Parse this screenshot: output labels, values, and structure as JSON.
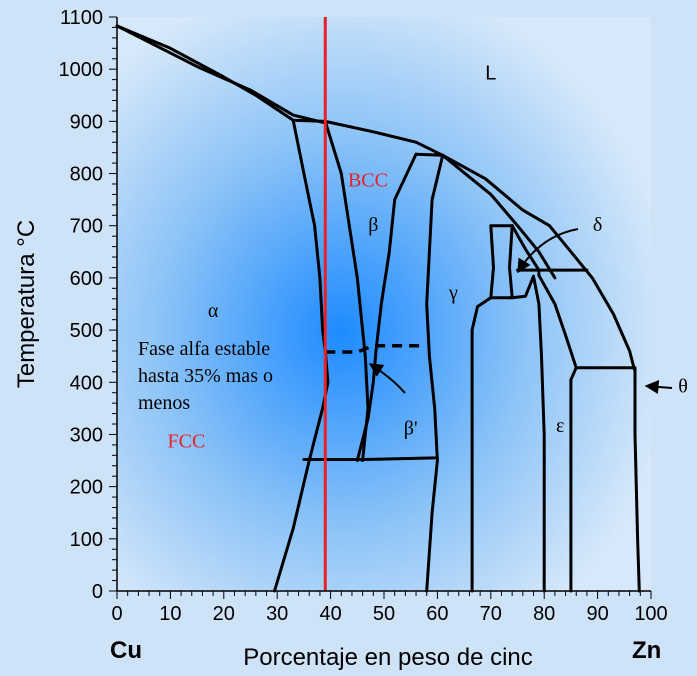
{
  "chart_data": {
    "type": "phase-diagram",
    "xlabel": "Porcentaje en peso de cinc",
    "ylabel": "Temperatura °C",
    "xlim": [
      0,
      100
    ],
    "ylim": [
      0,
      1100
    ],
    "x_ticks": [
      "0",
      "10",
      "20",
      "30",
      "40",
      "50",
      "60",
      "70",
      "80",
      "90",
      "100"
    ],
    "y_ticks": [
      "0",
      "100",
      "200",
      "300",
      "400",
      "500",
      "600",
      "700",
      "800",
      "900",
      "1000",
      "1100"
    ],
    "x_left_label": "Cu",
    "x_right_label": "Zn",
    "reference_line": {
      "x": 39,
      "color": "#e8202a"
    },
    "colors": {
      "background": "#cfe3f8",
      "plot_glow": "#1e8bff",
      "lines": "#000000",
      "labels_red": "#e8202a"
    },
    "phase_labels": [
      {
        "text": "L",
        "x": 70,
        "y": 980,
        "font": "sans"
      },
      {
        "text": "BCC",
        "x": 47,
        "y": 775,
        "font": "serif",
        "color": "#e8202a"
      },
      {
        "text": "β",
        "x": 48,
        "y": 690,
        "font": "serif"
      },
      {
        "text": "δ",
        "x": 90,
        "y": 690,
        "font": "serif"
      },
      {
        "text": "γ",
        "x": 63,
        "y": 560,
        "font": "serif"
      },
      {
        "text": "α",
        "x": 18,
        "y": 525,
        "font": "serif"
      },
      {
        "text": "β'",
        "x": 55,
        "y": 300,
        "font": "serif"
      },
      {
        "text": "ε",
        "x": 83,
        "y": 305,
        "font": "serif"
      },
      {
        "text": "FCC",
        "x": 13,
        "y": 275,
        "font": "serif",
        "color": "#e8202a"
      },
      {
        "text": "θ",
        "x": 106,
        "y": 380,
        "font": "serif"
      }
    ],
    "annotation": [
      "Fase alfa estable",
      "hasta 35% mas o",
      "menos"
    ],
    "boundaries": [
      [
        [
          0,
          1083
        ],
        [
          10,
          1040
        ],
        [
          20,
          985
        ],
        [
          26,
          950
        ],
        [
          33,
          902
        ],
        [
          39,
          900
        ],
        [
          48,
          880
        ],
        [
          56,
          860
        ],
        [
          61,
          835
        ]
      ],
      [
        [
          0,
          1083
        ],
        [
          15,
          1005
        ],
        [
          25,
          960
        ],
        [
          33,
          912
        ],
        [
          39,
          897
        ]
      ],
      [
        [
          61,
          835
        ],
        [
          69,
          790
        ],
        [
          76,
          730
        ],
        [
          81,
          700
        ],
        [
          85,
          650
        ],
        [
          89,
          600
        ],
        [
          93,
          530
        ],
        [
          96,
          460
        ],
        [
          97,
          420
        ]
      ],
      [
        [
          61,
          835
        ],
        [
          70,
          760
        ],
        [
          75,
          700
        ],
        [
          79,
          650
        ],
        [
          82,
          600
        ]
      ],
      [
        [
          56,
          837
        ],
        [
          61,
          835
        ]
      ],
      [
        [
          33,
          902
        ],
        [
          35,
          800
        ],
        [
          37,
          700
        ],
        [
          38,
          600
        ],
        [
          38.5,
          500
        ],
        [
          39,
          460
        ],
        [
          39.5,
          400
        ],
        [
          38.5,
          350
        ],
        [
          36,
          250
        ],
        [
          33,
          120
        ],
        [
          29.5,
          0
        ]
      ],
      [
        [
          39,
          900
        ],
        [
          42,
          800
        ],
        [
          43.5,
          700
        ],
        [
          45,
          600
        ],
        [
          46,
          500
        ],
        [
          46.5,
          450
        ],
        [
          47,
          350
        ],
        [
          46,
          250
        ]
      ],
      [
        [
          56,
          837
        ],
        [
          52,
          750
        ],
        [
          51,
          650
        ],
        [
          49.5,
          550
        ],
        [
          48.5,
          460
        ],
        [
          48,
          400
        ],
        [
          47,
          330
        ],
        [
          45,
          250
        ]
      ],
      [
        [
          61,
          835
        ],
        [
          59,
          750
        ],
        [
          58.5,
          650
        ],
        [
          58,
          550
        ],
        [
          58.5,
          450
        ],
        [
          59.5,
          350
        ],
        [
          60,
          250
        ],
        [
          59,
          150
        ],
        [
          58,
          0
        ]
      ],
      [
        [
          35,
          252
        ],
        [
          46,
          252
        ],
        [
          59.5,
          255
        ]
      ],
      [
        [
          70,
          700
        ],
        [
          74,
          700
        ]
      ],
      [
        [
          70,
          700
        ],
        [
          70.5,
          620
        ],
        [
          70,
          562
        ]
      ],
      [
        [
          74,
          700
        ],
        [
          73.5,
          620
        ],
        [
          74,
          562
        ]
      ],
      [
        [
          70,
          562
        ],
        [
          74,
          562
        ]
      ],
      [
        [
          70,
          562
        ],
        [
          67.5,
          545
        ],
        [
          66.5,
          500
        ],
        [
          66.5,
          300
        ],
        [
          66.5,
          0
        ]
      ],
      [
        [
          74,
          700
        ],
        [
          76.5,
          655
        ],
        [
          79,
          615
        ],
        [
          79,
          605
        ]
      ],
      [
        [
          75,
          615
        ],
        [
          88,
          615
        ]
      ],
      [
        [
          74,
          562
        ],
        [
          76.5,
          565
        ],
        [
          78,
          603
        ]
      ],
      [
        [
          78,
          603
        ],
        [
          79,
          550
        ],
        [
          79.5,
          450
        ],
        [
          80,
          300
        ],
        [
          80,
          0
        ]
      ],
      [
        [
          79,
          605
        ],
        [
          82,
          550
        ],
        [
          84,
          490
        ],
        [
          86,
          428
        ]
      ],
      [
        [
          86,
          428
        ],
        [
          97,
          428
        ]
      ],
      [
        [
          86,
          428
        ],
        [
          85,
          405
        ],
        [
          85,
          300
        ],
        [
          85,
          0
        ]
      ],
      [
        [
          97,
          428
        ],
        [
          97,
          300
        ],
        [
          97.5,
          100
        ],
        [
          97.8,
          0
        ]
      ]
    ],
    "beta_prime_dashed": [
      [
        39,
        458
      ],
      [
        45,
        458
      ],
      [
        48,
        470
      ],
      [
        57,
        470
      ]
    ]
  }
}
